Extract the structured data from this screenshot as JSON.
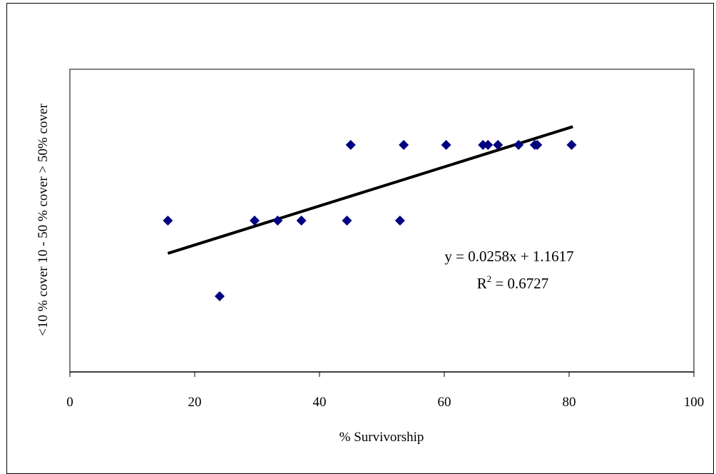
{
  "chart_data": {
    "type": "scatter",
    "xlabel": "% Survivorship",
    "ylabel": "<10 % cover 10 - 50 % cover > 50% cover",
    "xlim": [
      0,
      100
    ],
    "ylim": [
      0,
      4
    ],
    "x_ticks": [
      0,
      20,
      40,
      60,
      80,
      100
    ],
    "grid": false,
    "legend": "none",
    "marker": "diamond",
    "marker_color": "#000080",
    "series": [
      {
        "x": [
          15.7,
          24.0,
          29.6,
          33.3,
          37.1,
          44.4,
          45.0,
          52.9,
          53.5,
          60.3,
          66.2,
          67.0,
          68.6,
          71.9,
          74.5,
          74.9,
          80.4
        ],
        "y": [
          2,
          1,
          2,
          2,
          2,
          2,
          3,
          2,
          3,
          3,
          3,
          3,
          3,
          3,
          3,
          3,
          3
        ]
      }
    ],
    "trendline": {
      "type": "linear",
      "slope": 0.0258,
      "intercept": 1.1617,
      "x_range": [
        15.7,
        80.6
      ],
      "color": "#000000"
    },
    "annotations": {
      "equation": "y = 0.0258x + 1.1617",
      "r2_prefix": "R",
      "r2_sup": "2",
      "r2_suffix": " = 0.6727"
    }
  }
}
